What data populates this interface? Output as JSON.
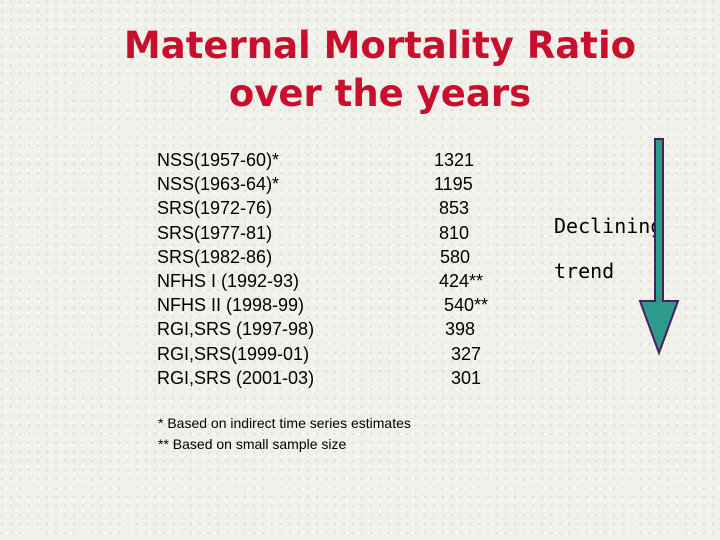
{
  "slide": {
    "title_line1": "Maternal Mortality Ratio",
    "title_line2": "over the years"
  },
  "rows": [
    {
      "label": "NSS(1957-60)*",
      "value": "1321"
    },
    {
      "label": "NSS(1963-64)*",
      "value": "1195"
    },
    {
      "label": "SRS(1972-76)",
      "value": "853"
    },
    {
      "label": "SRS(1977-81)",
      "value": "810"
    },
    {
      "label": "SRS(1982-86)",
      "value": "580"
    },
    {
      "label": "NFHS I (1992-93)",
      "value": "424**"
    },
    {
      "label": "NFHS II (1998-99)",
      "value": "540**"
    },
    {
      "label": "RGI,SRS (1997-98)",
      "value": "398"
    },
    {
      "label": "RGI,SRS(1999-01)",
      "value": "327"
    },
    {
      "label": "RGI,SRS (2001-03)",
      "value": "301"
    }
  ],
  "notes": {
    "note1": "* Based on indirect time series estimates",
    "note2": "** Based on small sample size"
  },
  "trend": {
    "line1": "Declining",
    "line2": "trend"
  },
  "colors": {
    "title": "#c8102e",
    "arrow_fill": "#2e9a8c",
    "arrow_stroke": "#4a1f5c"
  }
}
